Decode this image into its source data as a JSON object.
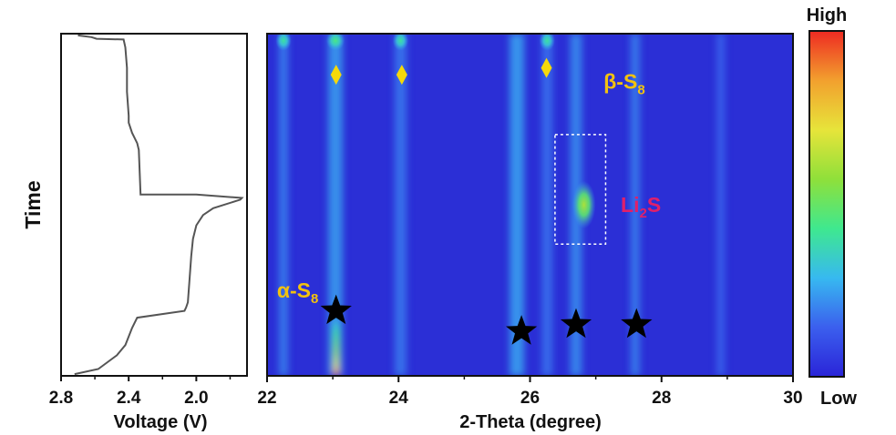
{
  "chart_data": [
    {
      "type": "line",
      "xlabel": "Voltage (V)",
      "ylabel": "Time",
      "xlim": [
        2.8,
        1.7
      ],
      "x_reversed": true,
      "x_ticks": [
        "2.8",
        "2.4",
        "2.0"
      ],
      "x_tick_values": [
        2.8,
        2.4,
        2.0
      ],
      "time_range": [
        0,
        1
      ],
      "series": [
        {
          "points": [
            [
              2.7,
              0.995
            ],
            [
              2.62,
              0.99
            ],
            [
              2.59,
              0.985
            ],
            [
              2.43,
              0.983
            ],
            [
              2.42,
              0.96
            ],
            [
              2.41,
              0.9
            ],
            [
              2.41,
              0.83
            ],
            [
              2.4,
              0.76
            ],
            [
              2.4,
              0.74
            ],
            [
              2.38,
              0.71
            ],
            [
              2.35,
              0.68
            ],
            [
              2.34,
              0.66
            ],
            [
              2.33,
              0.53
            ],
            [
              2.0,
              0.53
            ],
            [
              1.73,
              0.52
            ],
            [
              1.74,
              0.515
            ],
            [
              1.9,
              0.49
            ],
            [
              1.96,
              0.47
            ],
            [
              2.0,
              0.44
            ],
            [
              2.02,
              0.4
            ],
            [
              2.03,
              0.35
            ],
            [
              2.04,
              0.28
            ],
            [
              2.05,
              0.215
            ],
            [
              2.06,
              0.2
            ],
            [
              2.07,
              0.19
            ],
            [
              2.35,
              0.17
            ],
            [
              2.38,
              0.14
            ],
            [
              2.42,
              0.09
            ],
            [
              2.47,
              0.06
            ],
            [
              2.58,
              0.02
            ],
            [
              2.72,
              0.005
            ]
          ]
        }
      ]
    },
    {
      "type": "heatmap",
      "xlabel": "2-Theta (degree)",
      "xlim": [
        22,
        30
      ],
      "x_ticks": [
        "22",
        "24",
        "26",
        "28",
        "30"
      ],
      "x_tick_values": [
        22,
        24,
        26,
        28,
        30
      ],
      "time_range": [
        0,
        1
      ],
      "colorscale": [
        "#2a24d8",
        "#3b5fee",
        "#37b9f0",
        "#3fe88f",
        "#8fe03a",
        "#e7e43a",
        "#f2a02e",
        "#ee2a22"
      ],
      "colorbar": {
        "high_label": "High",
        "low_label": "Low"
      },
      "stripes": [
        {
          "x": 22.25,
          "width": 0.14,
          "intensity": 0.18,
          "t0": 0.0,
          "t1": 1.0
        },
        {
          "x": 23.04,
          "width": 0.22,
          "intensity": 0.28,
          "t0": 0.0,
          "t1": 1.0
        },
        {
          "x": 23.05,
          "width": 0.08,
          "intensity": 1.0,
          "t0": 0.0,
          "t1": 0.16
        },
        {
          "x": 24.03,
          "width": 0.18,
          "intensity": 0.15,
          "t0": 0.0,
          "t1": 1.0
        },
        {
          "x": 25.8,
          "width": 0.22,
          "intensity": 0.3,
          "t0": 0.0,
          "t1": 1.0
        },
        {
          "x": 26.26,
          "width": 0.16,
          "intensity": 0.13,
          "t0": 0.0,
          "t1": 1.0
        },
        {
          "x": 26.7,
          "width": 0.18,
          "intensity": 0.22,
          "t0": 0.0,
          "t1": 1.0
        },
        {
          "x": 27.6,
          "width": 0.14,
          "intensity": 0.18,
          "t0": 0.0,
          "t1": 1.0
        },
        {
          "x": 28.9,
          "width": 0.12,
          "intensity": 0.08,
          "t0": 0.0,
          "t1": 1.0
        }
      ],
      "peaks": [
        {
          "x": 26.82,
          "t": 0.5,
          "sx": 0.18,
          "st": 0.07,
          "intensity": 0.55
        },
        {
          "x": 22.25,
          "t": 0.98,
          "sx": 0.12,
          "st": 0.03,
          "intensity": 0.3
        },
        {
          "x": 23.04,
          "t": 0.98,
          "sx": 0.14,
          "st": 0.03,
          "intensity": 0.35
        },
        {
          "x": 24.03,
          "t": 0.98,
          "sx": 0.12,
          "st": 0.03,
          "intensity": 0.3
        },
        {
          "x": 26.26,
          "t": 0.98,
          "sx": 0.12,
          "st": 0.03,
          "intensity": 0.3
        }
      ],
      "markers": [
        {
          "symbol": "diamond",
          "x": 23.05,
          "t": 0.88,
          "color": "#f5d90a"
        },
        {
          "symbol": "diamond",
          "x": 24.05,
          "t": 0.88,
          "color": "#f5d90a"
        },
        {
          "symbol": "diamond",
          "x": 26.25,
          "t": 0.9,
          "color": "#f5d90a"
        },
        {
          "symbol": "star",
          "x": 23.05,
          "t": 0.19,
          "color": "#000000"
        },
        {
          "symbol": "star",
          "x": 25.87,
          "t": 0.13,
          "color": "#000000"
        },
        {
          "symbol": "star",
          "x": 26.7,
          "t": 0.15,
          "color": "#000000"
        },
        {
          "symbol": "star",
          "x": 27.62,
          "t": 0.15,
          "color": "#000000"
        }
      ],
      "annotations": [
        {
          "text": "β-S",
          "sub": "8",
          "x": 27.12,
          "t": 0.86,
          "color": "#f2c20f"
        },
        {
          "text": "Li",
          "sub": "2",
          "tail": "S",
          "x": 27.38,
          "t": 0.5,
          "color": "#e0206a"
        },
        {
          "text": "α-S",
          "sub": "8",
          "x": 22.15,
          "t": 0.25,
          "color": "#f2c20f"
        }
      ],
      "li2s_box": {
        "x0": 26.38,
        "x1": 27.15,
        "t0": 0.385,
        "t1": 0.705
      }
    }
  ]
}
